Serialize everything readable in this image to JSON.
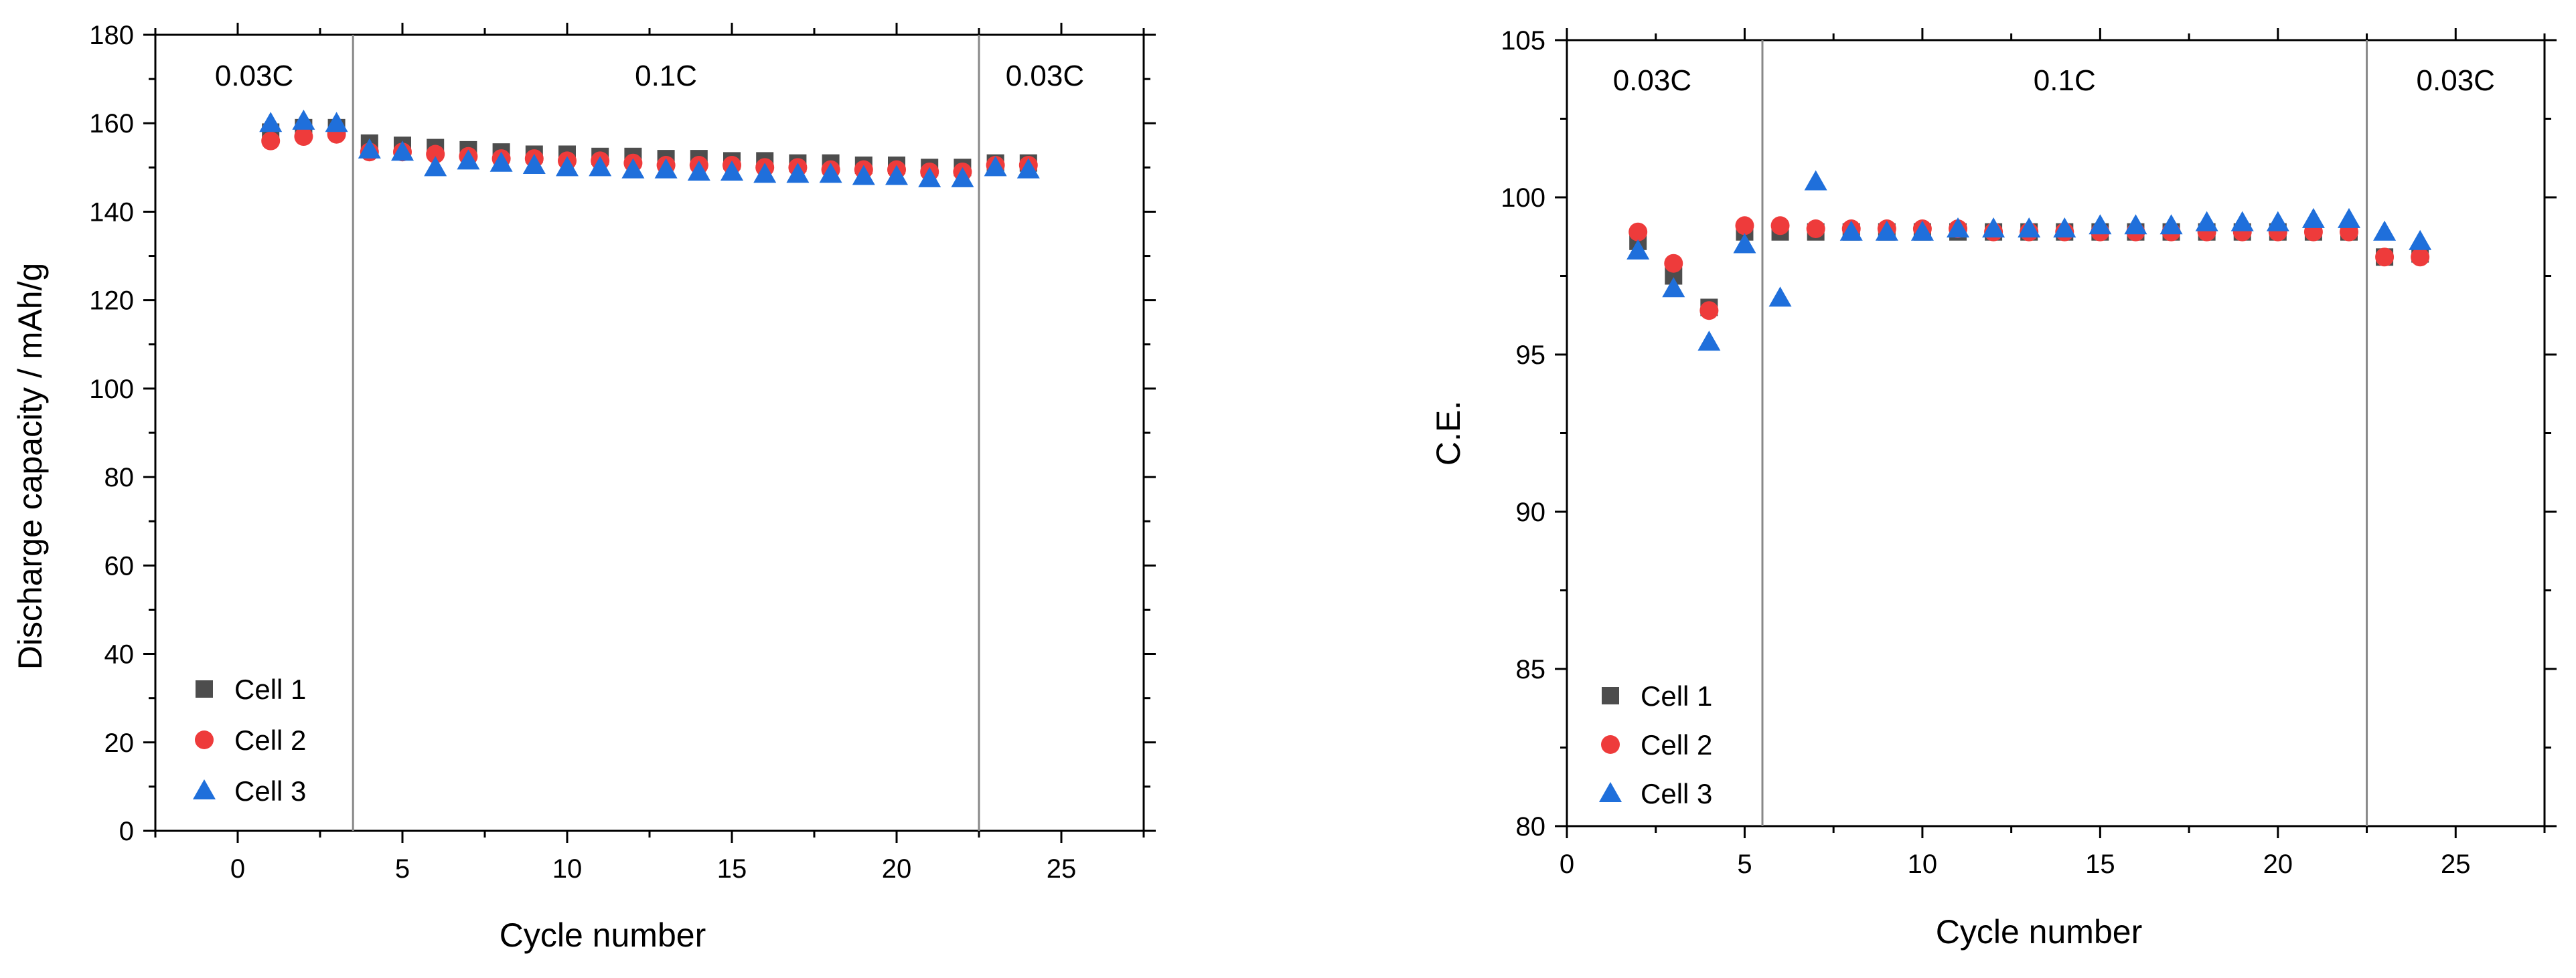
{
  "chart_data": [
    {
      "type": "scatter",
      "title": "",
      "xlabel": "Cycle number",
      "ylabel": "Discharge capacity / mAh/g",
      "xlim": [
        -2.5,
        27.5
      ],
      "ylim": [
        0,
        180
      ],
      "xticks": [
        0,
        5,
        10,
        15,
        20,
        25
      ],
      "yticks": [
        0,
        20,
        40,
        60,
        80,
        100,
        120,
        140,
        160,
        180
      ],
      "xtick_labels": [
        "0",
        "5",
        "10",
        "15",
        "20",
        "25"
      ],
      "ytick_labels": [
        "0",
        "20",
        "40",
        "60",
        "80",
        "100",
        "120",
        "140",
        "160",
        "180"
      ],
      "regions": [
        {
          "label": "0.03C",
          "x": 0.5
        },
        {
          "label": "0.1C",
          "x": 13
        },
        {
          "label": "0.03C",
          "x": 24.5
        }
      ],
      "region_boundaries": [
        3.5,
        22.5
      ],
      "legend_position": "bottom-left",
      "series": [
        {
          "name": "Cell 1",
          "marker": "square",
          "color": "#4d4d4d",
          "x": [
            1,
            2,
            3,
            4,
            5,
            6,
            7,
            8,
            9,
            10,
            11,
            12,
            13,
            14,
            15,
            16,
            17,
            18,
            19,
            20,
            21,
            22,
            23,
            24
          ],
          "y": [
            158,
            159,
            159,
            155.5,
            155,
            154.5,
            154,
            153.5,
            153,
            153,
            152.5,
            152.5,
            152,
            152,
            151.5,
            151.5,
            151,
            151,
            150.5,
            150.5,
            150,
            150,
            151,
            151
          ]
        },
        {
          "name": "Cell 2",
          "marker": "circle",
          "color": "#ee3b3b",
          "x": [
            1,
            2,
            3,
            4,
            5,
            6,
            7,
            8,
            9,
            10,
            11,
            12,
            13,
            14,
            15,
            16,
            17,
            18,
            19,
            20,
            21,
            22,
            23,
            24
          ],
          "y": [
            156,
            157,
            157.5,
            153.5,
            153.5,
            153,
            152.5,
            152,
            152,
            151.5,
            151.5,
            151,
            150.5,
            150.5,
            150.5,
            150,
            150,
            149.5,
            149.5,
            149.5,
            149,
            149,
            150.5,
            150.5
          ]
        },
        {
          "name": "Cell 3",
          "marker": "triangle",
          "color": "#1f6fdb",
          "x": [
            1,
            2,
            3,
            4,
            5,
            6,
            7,
            8,
            9,
            10,
            11,
            12,
            13,
            14,
            15,
            16,
            17,
            18,
            19,
            20,
            21,
            22,
            23,
            24
          ],
          "y": [
            160,
            160.5,
            160,
            154,
            153.5,
            150,
            151.5,
            151,
            150.5,
            150,
            150,
            149.5,
            149.5,
            149,
            149,
            148.5,
            148.5,
            148.5,
            148,
            148,
            147.5,
            147.5,
            150,
            149.5
          ]
        }
      ]
    },
    {
      "type": "scatter",
      "title": "",
      "xlabel": "Cycle number",
      "ylabel": "C.E.",
      "xlim": [
        0,
        27.5
      ],
      "ylim": [
        80,
        105
      ],
      "xticks": [
        0,
        5,
        10,
        15,
        20,
        25
      ],
      "yticks": [
        80,
        85,
        90,
        95,
        100,
        105
      ],
      "xtick_labels": [
        "0",
        "5",
        "10",
        "15",
        "20",
        "25"
      ],
      "ytick_labels": [
        "80",
        "85",
        "90",
        "95",
        "100",
        "105"
      ],
      "regions": [
        {
          "label": "0.03C",
          "x": 2.4
        },
        {
          "label": "0.1C",
          "x": 14
        },
        {
          "label": "0.03C",
          "x": 25
        }
      ],
      "region_boundaries": [
        5.5,
        22.5
      ],
      "legend_position": "bottom-left",
      "series": [
        {
          "name": "Cell 1",
          "marker": "square",
          "color": "#4d4d4d",
          "x": [
            2,
            3,
            4,
            5,
            6,
            7,
            8,
            9,
            10,
            11,
            12,
            13,
            14,
            15,
            16,
            17,
            18,
            19,
            20,
            21,
            22,
            23,
            24
          ],
          "y": [
            98.6,
            97.5,
            96.5,
            98.9,
            98.9,
            98.9,
            98.9,
            98.9,
            98.9,
            98.9,
            98.9,
            98.9,
            98.9,
            98.9,
            98.9,
            98.9,
            98.9,
            98.9,
            98.9,
            98.9,
            98.9,
            98.1,
            98.2
          ]
        },
        {
          "name": "Cell 2",
          "marker": "circle",
          "color": "#ee3b3b",
          "x": [
            2,
            3,
            4,
            5,
            6,
            7,
            8,
            9,
            10,
            11,
            12,
            13,
            14,
            15,
            16,
            17,
            18,
            19,
            20,
            21,
            22,
            23,
            24
          ],
          "y": [
            98.9,
            97.9,
            96.4,
            99.1,
            99.1,
            99.0,
            99.0,
            99.0,
            99.0,
            99.0,
            98.9,
            98.9,
            98.9,
            98.9,
            98.9,
            98.9,
            98.9,
            98.9,
            98.9,
            98.9,
            98.9,
            98.1,
            98.1
          ]
        },
        {
          "name": "Cell 3",
          "marker": "triangle",
          "color": "#1f6fdb",
          "x": [
            2,
            3,
            4,
            5,
            6,
            7,
            8,
            9,
            10,
            11,
            12,
            13,
            14,
            15,
            16,
            17,
            18,
            19,
            20,
            21,
            22,
            23,
            24
          ],
          "y": [
            98.3,
            97.1,
            95.4,
            98.5,
            96.8,
            100.5,
            98.9,
            98.9,
            98.9,
            99.0,
            99.0,
            99.0,
            99.0,
            99.1,
            99.1,
            99.1,
            99.2,
            99.2,
            99.2,
            99.3,
            99.3,
            98.9,
            98.6
          ]
        }
      ]
    }
  ]
}
